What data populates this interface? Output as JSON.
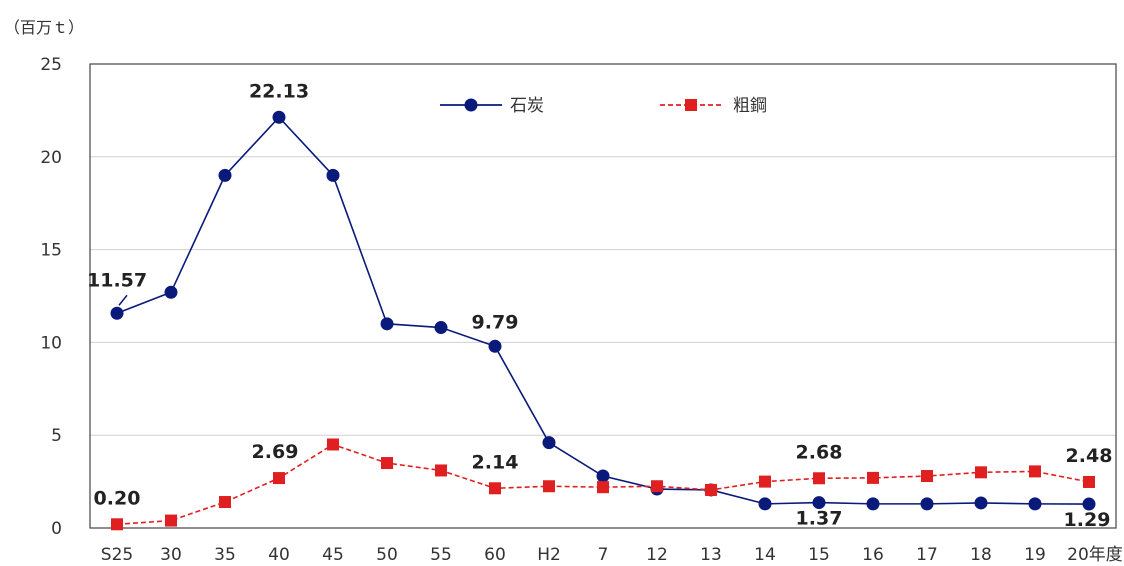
{
  "chart_data": {
    "type": "line",
    "unit_label": "（百万ｔ）",
    "categories": [
      "S25",
      "30",
      "35",
      "40",
      "45",
      "50",
      "55",
      "60",
      "H2",
      "7",
      "12",
      "13",
      "14",
      "15",
      "16",
      "17",
      "18",
      "19",
      "20年度"
    ],
    "ylim": [
      0,
      25
    ],
    "yticks": [
      0,
      5,
      10,
      15,
      20,
      25
    ],
    "grid": true,
    "legend_position": "top-center",
    "series": [
      {
        "name": "石炭",
        "color": "#0a1a7a",
        "line_style": "solid",
        "marker": "circle",
        "values": [
          11.57,
          12.7,
          19.0,
          22.13,
          19.0,
          11.0,
          10.8,
          9.79,
          4.6,
          2.8,
          2.1,
          2.05,
          1.3,
          1.37,
          1.3,
          1.3,
          1.35,
          1.3,
          1.29
        ]
      },
      {
        "name": "粗鋼",
        "color": "#e02020",
        "line_style": "dashed",
        "marker": "square",
        "values": [
          0.2,
          0.4,
          1.4,
          2.69,
          4.5,
          3.5,
          3.1,
          2.14,
          2.25,
          2.2,
          2.25,
          2.05,
          2.5,
          2.68,
          2.7,
          2.8,
          3.0,
          3.05,
          2.48
        ]
      }
    ],
    "annotations": [
      {
        "series": 0,
        "index": 0,
        "text": "11.57"
      },
      {
        "series": 0,
        "index": 3,
        "text": "22.13"
      },
      {
        "series": 0,
        "index": 7,
        "text": "9.79"
      },
      {
        "series": 0,
        "index": 13,
        "text": "1.37"
      },
      {
        "series": 0,
        "index": 18,
        "text": "1.29"
      },
      {
        "series": 1,
        "index": 0,
        "text": "0.20"
      },
      {
        "series": 1,
        "index": 3,
        "text": "2.69"
      },
      {
        "series": 1,
        "index": 7,
        "text": "2.14"
      },
      {
        "series": 1,
        "index": 13,
        "text": "2.68"
      },
      {
        "series": 1,
        "index": 18,
        "text": "2.48"
      }
    ]
  }
}
